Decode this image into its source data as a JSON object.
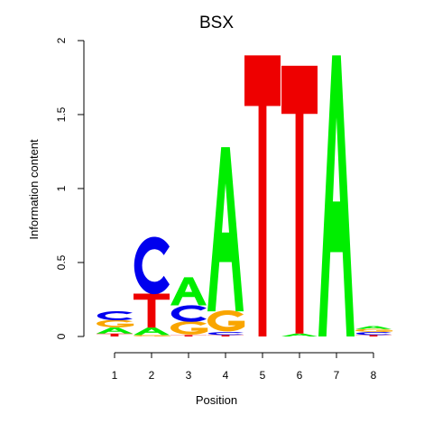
{
  "chart_data": {
    "type": "sequence-logo",
    "title": "BSX",
    "xlabel": "Position",
    "ylabel": "Information content",
    "ylim": [
      0,
      2
    ],
    "yticks": [
      {
        "value": 0,
        "label": "0"
      },
      {
        "value": 0.5,
        "label": "0.5"
      },
      {
        "value": 1,
        "label": "1"
      },
      {
        "value": 1.5,
        "label": "1.5"
      },
      {
        "value": 2,
        "label": "2"
      }
    ],
    "xticks": [
      "1",
      "2",
      "3",
      "4",
      "5",
      "6",
      "7",
      "8"
    ],
    "colors": {
      "A": "#00ee00",
      "C": "#0000ee",
      "G": "#f9a500",
      "T": "#ee0000"
    },
    "positions": [
      {
        "pos": "1",
        "letters": [
          {
            "base": "T",
            "height": 0.02
          },
          {
            "base": "A",
            "height": 0.04
          },
          {
            "base": "G",
            "height": 0.05
          },
          {
            "base": "C",
            "height": 0.06
          }
        ]
      },
      {
        "pos": "2",
        "letters": [
          {
            "base": "G",
            "height": 0.01
          },
          {
            "base": "A",
            "height": 0.05
          },
          {
            "base": "T",
            "height": 0.23
          },
          {
            "base": "C",
            "height": 0.38
          }
        ]
      },
      {
        "pos": "3",
        "letters": [
          {
            "base": "T",
            "height": 0.01
          },
          {
            "base": "G",
            "height": 0.09
          },
          {
            "base": "C",
            "height": 0.11
          },
          {
            "base": "A",
            "height": 0.19
          }
        ]
      },
      {
        "pos": "4",
        "letters": [
          {
            "base": "T",
            "height": 0.01
          },
          {
            "base": "C",
            "height": 0.02
          },
          {
            "base": "G",
            "height": 0.14
          },
          {
            "base": "A",
            "height": 1.11
          }
        ]
      },
      {
        "pos": "5",
        "letters": [
          {
            "base": "T",
            "height": 1.9
          }
        ]
      },
      {
        "pos": "6",
        "letters": [
          {
            "base": "A",
            "height": 0.02
          },
          {
            "base": "T",
            "height": 1.81
          }
        ]
      },
      {
        "pos": "7",
        "letters": [
          {
            "base": "A",
            "height": 1.9
          }
        ]
      },
      {
        "pos": "8",
        "letters": [
          {
            "base": "T",
            "height": 0.01
          },
          {
            "base": "C",
            "height": 0.02
          },
          {
            "base": "G",
            "height": 0.02
          },
          {
            "base": "A",
            "height": 0.02
          }
        ]
      }
    ]
  }
}
